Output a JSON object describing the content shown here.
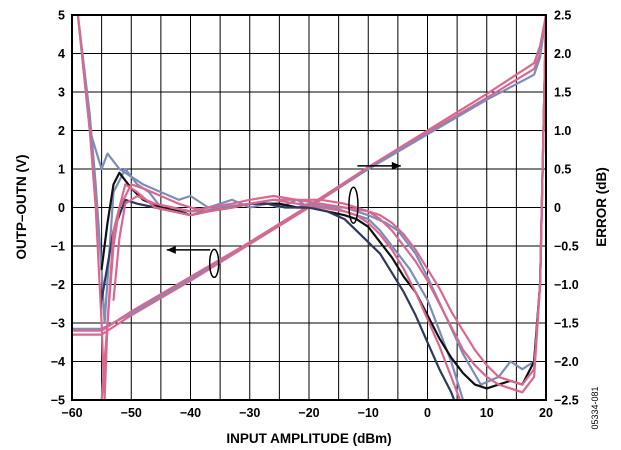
{
  "chart_data": {
    "type": "line",
    "xlabel": "INPUT AMPLITUDE (dBm)",
    "ylabel_left": "OUTP–OUTN (V)",
    "ylabel_right": "ERROR (dB)",
    "figure_id": "05334-081",
    "xlim": [
      -60,
      20
    ],
    "ylim_left": [
      -5,
      5
    ],
    "ylim_right": [
      -2.5,
      2.5
    ],
    "grid": true,
    "x_ticks": [
      "−60",
      "−50",
      "−40",
      "−30",
      "−20",
      "−10",
      "0",
      "10",
      "20"
    ],
    "x_tick_values": [
      -60,
      -50,
      -40,
      -30,
      -20,
      -10,
      0,
      10,
      20
    ],
    "y_left_ticks": [
      "5",
      "4",
      "3",
      "2",
      "1",
      "0",
      "−1",
      "−2",
      "−3",
      "−4",
      "−5"
    ],
    "y_left_tick_values": [
      5,
      4,
      3,
      2,
      1,
      0,
      -1,
      -2,
      -3,
      -4,
      -5
    ],
    "y_right_ticks": [
      "2.5",
      "2.0",
      "1.5",
      "1.0",
      "0.5",
      "0",
      "−0.5",
      "−1.0",
      "−1.5",
      "−2.0",
      "−2.5"
    ],
    "y_right_tick_values": [
      2.5,
      2.0,
      1.5,
      1.0,
      0.5,
      0,
      -0.5,
      -1.0,
      -1.5,
      -2.0,
      -2.5
    ],
    "colors": {
      "pink": "#d9688f",
      "blue": "#7b8db8",
      "black": "#111111",
      "navy": "#2e3a5c"
    },
    "output_curves_left_axis": [
      {
        "color": "pink",
        "x": [
          -60,
          -55,
          -50,
          -40,
          -30,
          -20,
          -10,
          0,
          10,
          18,
          19,
          20
        ],
        "y": [
          -3.3,
          -3.3,
          -2.8,
          -1.9,
          -0.95,
          0.0,
          1.0,
          1.95,
          2.85,
          3.6,
          4.0,
          5.0
        ]
      },
      {
        "color": "blue",
        "x": [
          -60,
          -55,
          -50,
          -40,
          -30,
          -20,
          -10,
          0,
          10,
          18,
          19,
          20
        ],
        "y": [
          -3.15,
          -3.15,
          -2.75,
          -1.85,
          -0.9,
          0.05,
          1.0,
          1.9,
          2.8,
          3.45,
          3.9,
          5.0
        ]
      },
      {
        "color": "pink",
        "x": [
          -60,
          -55,
          -50,
          -40,
          -30,
          -20,
          -10,
          0,
          10,
          18,
          19,
          20
        ],
        "y": [
          -3.2,
          -3.2,
          -2.7,
          -1.8,
          -0.9,
          0.05,
          1.05,
          2.0,
          2.95,
          3.75,
          4.2,
          5.0
        ]
      }
    ],
    "error_curves_right_axis": [
      {
        "color": "blue",
        "x": [
          -59,
          -57,
          -56,
          -55,
          -54.5,
          -53,
          -51,
          -49,
          -47,
          -45,
          -42,
          -38,
          -35,
          -30,
          -25,
          -22,
          -20,
          -17,
          -14,
          -12,
          -10,
          -7,
          -5,
          -2,
          0,
          3,
          6,
          9,
          12,
          14,
          16,
          18,
          19,
          20
        ],
        "y": [
          2.5,
          1.2,
          0.3,
          -0.8,
          -1.5,
          0.2,
          0.5,
          0.3,
          0.2,
          0.0,
          -0.05,
          -0.05,
          0.0,
          0.05,
          0.05,
          0.0,
          0.05,
          0.0,
          0.0,
          -0.05,
          -0.1,
          -0.2,
          -0.3,
          -0.6,
          -0.9,
          -1.4,
          -1.9,
          -2.3,
          -2.2,
          -2.0,
          -2.1,
          -2.0,
          -1.0,
          2.5
        ]
      },
      {
        "color": "blue",
        "x": [
          -59,
          -57,
          -55,
          -54,
          -53,
          -52,
          -50,
          -48,
          -45,
          -42,
          -40,
          -37,
          -33,
          -30,
          -27,
          -25,
          -22,
          -20,
          -18,
          -16,
          -14,
          -12,
          -10,
          -8,
          -6,
          -3,
          0,
          2,
          4,
          6
        ],
        "y": [
          2.5,
          1.0,
          0.5,
          0.7,
          0.6,
          0.5,
          0.4,
          0.3,
          0.2,
          0.1,
          0.15,
          0.0,
          0.1,
          0.0,
          0.05,
          0.0,
          0.1,
          0.0,
          0.05,
          0.0,
          -0.05,
          -0.1,
          -0.15,
          -0.3,
          -0.5,
          -0.8,
          -1.2,
          -1.6,
          -2.0,
          -2.5
        ]
      },
      {
        "color": "black",
        "x": [
          -55,
          -54,
          -53,
          -52,
          -50,
          -48,
          -45,
          -42,
          -40,
          -37,
          -33,
          -30,
          -27,
          -25,
          -22,
          -20,
          -17,
          -14,
          -12,
          -10,
          -8,
          -6,
          -4,
          -2,
          0,
          2,
          4,
          6,
          8,
          10,
          12,
          14,
          16,
          18,
          19,
          20
        ],
        "y": [
          -0.8,
          -0.2,
          0.3,
          0.45,
          0.25,
          0.1,
          0.0,
          -0.05,
          -0.1,
          -0.05,
          0.0,
          0.05,
          0.05,
          0.05,
          0.0,
          0.0,
          -0.05,
          -0.1,
          -0.15,
          -0.25,
          -0.45,
          -0.65,
          -0.9,
          -1.1,
          -1.4,
          -1.7,
          -1.95,
          -2.15,
          -2.3,
          -2.35,
          -2.3,
          -2.25,
          -2.3,
          -2.0,
          -1.0,
          2.5
        ]
      },
      {
        "color": "navy",
        "x": [
          -55,
          -53,
          -51,
          -49,
          -46,
          -43,
          -40,
          -37,
          -33,
          -30,
          -27,
          -24,
          -20,
          -17,
          -14,
          -12,
          -10,
          -8,
          -6,
          -4,
          -2,
          0,
          2,
          4,
          5
        ],
        "y": [
          -1.2,
          -0.3,
          0.1,
          0.05,
          0.0,
          -0.05,
          -0.1,
          -0.05,
          0.0,
          0.05,
          0.05,
          0.0,
          0.0,
          -0.05,
          -0.15,
          -0.3,
          -0.45,
          -0.6,
          -0.85,
          -1.1,
          -1.4,
          -1.75,
          -2.1,
          -2.4,
          -2.6
        ]
      },
      {
        "color": "pink",
        "x": [
          -59,
          -57,
          -56,
          -55,
          -54.5,
          -54,
          -53,
          -51,
          -49,
          -46,
          -43,
          -40,
          -37,
          -33,
          -30,
          -26,
          -22,
          -18,
          -14,
          -12,
          -10,
          -8,
          -6,
          -4,
          -2,
          0,
          2,
          4,
          6
        ],
        "y": [
          2.5,
          1.0,
          0.0,
          -1.5,
          -2.5,
          -1.5,
          -0.3,
          0.3,
          0.2,
          0.0,
          -0.05,
          -0.1,
          -0.05,
          0.0,
          0.05,
          0.1,
          0.05,
          0.0,
          -0.05,
          -0.1,
          -0.2,
          -0.35,
          -0.55,
          -0.8,
          -1.1,
          -1.45,
          -1.8,
          -2.2,
          -2.6
        ]
      },
      {
        "color": "pink",
        "x": [
          -55,
          -54,
          -53,
          -52,
          -50,
          -48,
          -45,
          -42,
          -40,
          -37,
          -33,
          -30,
          -26,
          -22,
          -18,
          -14,
          -10,
          -8,
          -6,
          -4,
          -2,
          0,
          2,
          4,
          6,
          8,
          10,
          12,
          14,
          16,
          18,
          19,
          20
        ],
        "y": [
          -2.5,
          -1.5,
          -0.5,
          0.0,
          0.3,
          0.25,
          0.15,
          0.05,
          0.0,
          -0.05,
          0.0,
          0.05,
          0.1,
          0.1,
          0.05,
          0.0,
          -0.05,
          -0.15,
          -0.3,
          -0.5,
          -0.7,
          -0.95,
          -1.25,
          -1.55,
          -1.85,
          -2.05,
          -2.2,
          -2.3,
          -2.35,
          -2.4,
          -2.2,
          -1.0,
          2.5
        ]
      },
      {
        "color": "pink",
        "x": [
          -53,
          -52,
          -51,
          -49,
          -46,
          -43,
          -40,
          -37,
          -33,
          -30,
          -26,
          -22,
          -18,
          -14,
          -12,
          -10,
          -8,
          -6,
          -4,
          -2,
          0,
          2,
          4,
          6,
          8,
          10,
          12,
          14,
          16,
          18,
          19,
          20
        ],
        "y": [
          -1.2,
          -0.4,
          0.05,
          0.15,
          0.05,
          0.0,
          -0.05,
          0.0,
          0.05,
          0.1,
          0.15,
          0.1,
          0.1,
          0.05,
          0.0,
          -0.05,
          -0.1,
          -0.2,
          -0.35,
          -0.55,
          -0.8,
          -1.05,
          -1.35,
          -1.6,
          -1.85,
          -2.05,
          -2.2,
          -2.25,
          -2.3,
          -2.1,
          -1.0,
          2.5
        ]
      }
    ]
  }
}
